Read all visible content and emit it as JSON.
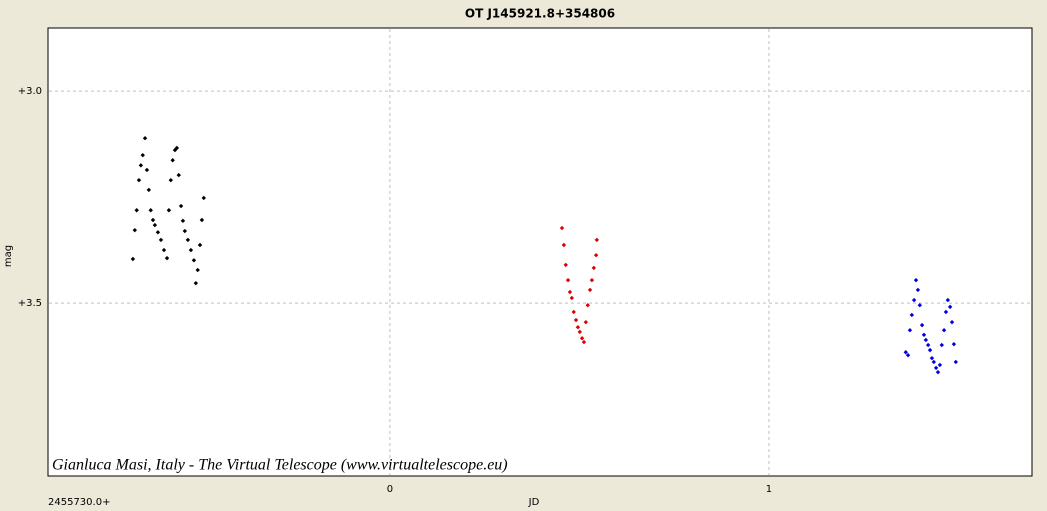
{
  "chart_data": {
    "type": "scatter",
    "title": "OT J145921.8+354806",
    "x_label": "JD",
    "y_label": "mag",
    "x_offset_label": "2455730.0+",
    "annotation": "Gianluca Masi, Italy - The Virtual Telescope (www.virtualtelescope.eu)",
    "xlim": [
      -0.902,
      1.694
    ],
    "xticks": [
      0,
      1
    ],
    "ylim": [
      3.908,
      2.851
    ],
    "yticks": [
      {
        "value": 3.0,
        "label": "+3.0"
      },
      {
        "value": 3.5,
        "label": "+3.5"
      }
    ],
    "grid": true,
    "series": [
      {
        "color": "#000000",
        "x": [
          -0.678,
          -0.673,
          -0.668,
          -0.662,
          -0.657,
          -0.652,
          -0.646,
          -0.641,
          -0.636,
          -0.631,
          -0.625,
          -0.62,
          -0.612,
          -0.604,
          -0.596,
          -0.588,
          -0.583,
          -0.578,
          -0.573,
          -0.567,
          -0.562,
          -0.557,
          -0.551,
          -0.546,
          -0.541,
          -0.533,
          -0.525,
          -0.517,
          -0.512,
          -0.507,
          -0.501,
          -0.496,
          -0.491
        ],
        "values": [
          3.396,
          3.328,
          3.281,
          3.21,
          3.175,
          3.151,
          3.111,
          3.186,
          3.233,
          3.281,
          3.304,
          3.316,
          3.333,
          3.351,
          3.375,
          3.394,
          3.281,
          3.21,
          3.163,
          3.139,
          3.134,
          3.198,
          3.271,
          3.306,
          3.33,
          3.351,
          3.375,
          3.399,
          3.453,
          3.422,
          3.363,
          3.304,
          3.252
        ]
      },
      {
        "color": "#e00000",
        "x": [
          0.454,
          0.459,
          0.464,
          0.47,
          0.475,
          0.48,
          0.485,
          0.491,
          0.496,
          0.501,
          0.507,
          0.512,
          0.517,
          0.522,
          0.528,
          0.533,
          0.538,
          0.544,
          0.546
        ],
        "values": [
          3.323,
          3.363,
          3.41,
          3.446,
          3.474,
          3.488,
          3.521,
          3.54,
          3.557,
          3.568,
          3.583,
          3.592,
          3.545,
          3.505,
          3.469,
          3.446,
          3.417,
          3.387,
          3.351
        ]
      },
      {
        "color": "#0000e0",
        "x": [
          1.361,
          1.367,
          1.372,
          1.377,
          1.383,
          1.388,
          1.393,
          1.398,
          1.404,
          1.409,
          1.414,
          1.42,
          1.425,
          1.43,
          1.435,
          1.441,
          1.446,
          1.451,
          1.456,
          1.462,
          1.467,
          1.472,
          1.478,
          1.483,
          1.488,
          1.493
        ],
        "values": [
          3.616,
          3.623,
          3.564,
          3.528,
          3.493,
          3.446,
          3.469,
          3.505,
          3.552,
          3.575,
          3.587,
          3.599,
          3.611,
          3.63,
          3.639,
          3.653,
          3.663,
          3.646,
          3.599,
          3.564,
          3.521,
          3.493,
          3.509,
          3.545,
          3.597,
          3.639
        ]
      }
    ]
  }
}
